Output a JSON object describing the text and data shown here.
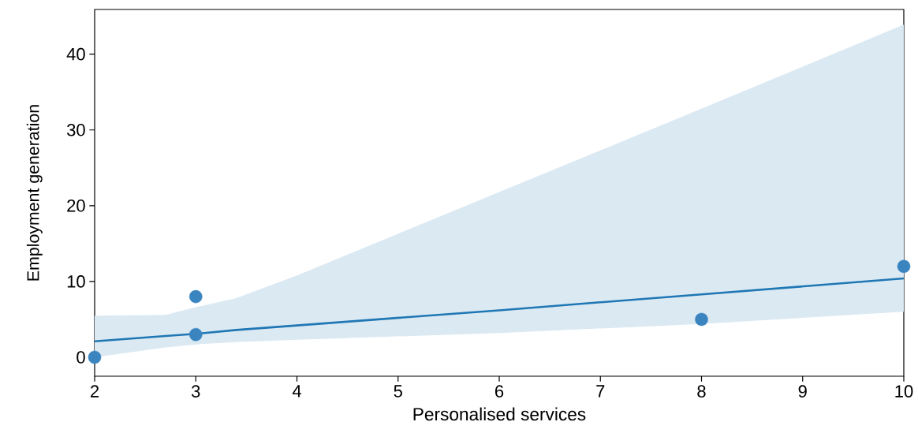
{
  "chart_data": {
    "type": "scatter",
    "xlabel": "Personalised services",
    "ylabel": "Employment generation",
    "xlim": [
      2,
      10
    ],
    "ylim": [
      -2.5,
      45.9
    ],
    "xticks": [
      2,
      3,
      4,
      5,
      6,
      7,
      8,
      9,
      10
    ],
    "yticks": [
      0,
      10,
      20,
      30,
      40
    ],
    "series": [
      {
        "color": "#3a84c0",
        "marker": "circle",
        "x": [
          2,
          3,
          3,
          8,
          10
        ],
        "values": [
          0,
          8,
          3,
          5,
          12
        ]
      },
      {
        "type": "line",
        "color": "#1f77b4",
        "marker": "none",
        "x": [
          2,
          2.7,
          3,
          3.4,
          4,
          6,
          8,
          10
        ],
        "values": [
          2.1,
          2.8,
          3.1,
          3.6,
          4.2,
          6.2,
          8.3,
          10.4
        ],
        "lower": [
          0.0,
          1.3,
          1.7,
          2.0,
          2.3,
          3.2,
          4.4,
          6.0
        ],
        "upper": [
          5.5,
          5.6,
          6.6,
          7.8,
          10.8,
          21.8,
          32.8,
          43.9
        ]
      }
    ]
  }
}
